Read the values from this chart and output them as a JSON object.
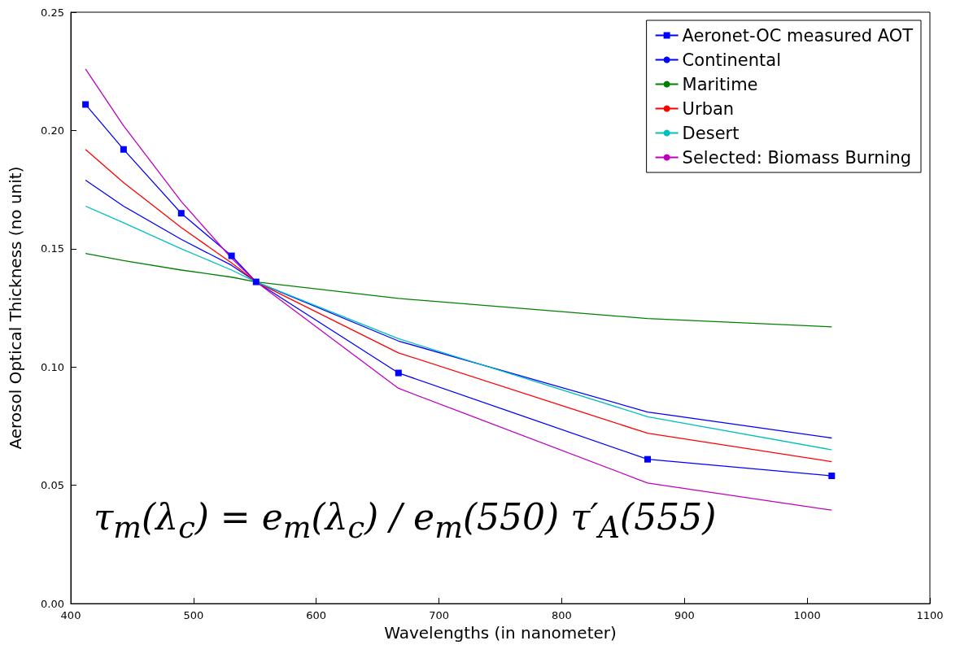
{
  "chart_data": {
    "type": "line",
    "xlabel": "Wavelengths (in nanometer)",
    "ylabel": "Aerosol Optical Thickness (no unit)",
    "x": [
      412,
      443,
      490,
      531,
      551,
      667,
      870,
      1020
    ],
    "series": [
      {
        "name": "Aeronet-OC measured AOT",
        "color": "#0000ff",
        "marker": "square",
        "values": [
          0.211,
          0.192,
          0.165,
          0.147,
          0.136,
          0.0975,
          0.061,
          0.054
        ]
      },
      {
        "name": "Continental",
        "color": "#0000ff",
        "marker": "none",
        "values": [
          0.179,
          0.168,
          0.154,
          0.143,
          0.136,
          0.111,
          0.081,
          0.07
        ]
      },
      {
        "name": "Maritime",
        "color": "#008000",
        "marker": "none",
        "values": [
          0.148,
          0.145,
          0.141,
          0.138,
          0.136,
          0.129,
          0.1205,
          0.117
        ]
      },
      {
        "name": "Urban",
        "color": "#ff0000",
        "marker": "none",
        "values": [
          0.192,
          0.178,
          0.159,
          0.144,
          0.136,
          0.106,
          0.072,
          0.06
        ]
      },
      {
        "name": "Desert",
        "color": "#00bfbf",
        "marker": "none",
        "values": [
          0.168,
          0.161,
          0.15,
          0.141,
          0.136,
          0.112,
          0.079,
          0.065
        ]
      },
      {
        "name": "Selected: Biomass Burning",
        "color": "#bf00bf",
        "marker": "none",
        "values": [
          0.226,
          0.202,
          0.17,
          0.146,
          0.136,
          0.091,
          0.051,
          0.0395
        ]
      }
    ],
    "xlim": [
      400,
      1100
    ],
    "xticks": [
      400,
      500,
      600,
      700,
      800,
      900,
      1000,
      1100
    ],
    "ylim": [
      0,
      0.25
    ],
    "yticks": [
      {
        "value": 0,
        "label": "0.00"
      },
      {
        "value": 0.05,
        "label": "0.05"
      },
      {
        "value": 0.1,
        "label": "0.10"
      },
      {
        "value": 0.15,
        "label": "0.15"
      },
      {
        "value": 0.2,
        "label": "0.20"
      },
      {
        "value": 0.25,
        "label": "0.25"
      }
    ],
    "grid": false,
    "legend": "top right",
    "annotations": [
      "τ$_{m}$(λ$_{c}$) = e$_{m}$(λ$_{c}$) / e$_{m}$(550) τ′$_{A}$(555)"
    ]
  }
}
